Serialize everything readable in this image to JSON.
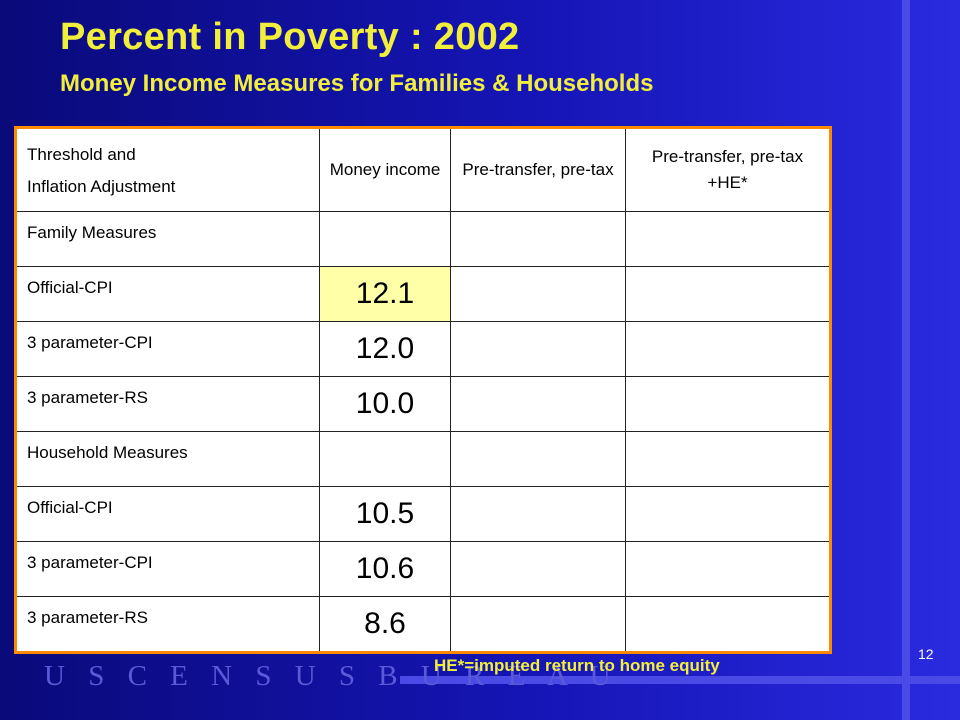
{
  "slide": {
    "title": "Percent in Poverty : 2002",
    "subtitle": "Money Income Measures for Families & Households",
    "footnote": "HE*=imputed return to home equity",
    "logo_text": "U S C E N S U S B U R E A U",
    "page_number": "12",
    "colors": {
      "background": "#1414a8",
      "title": "#f2ef3a",
      "table_border": "#ff8a00",
      "highlight_cell": "#ffffa8"
    }
  },
  "table": {
    "headers": {
      "threshold_line1": "Threshold and",
      "threshold_line2": "Inflation Adjustment",
      "money_income": "Money income",
      "pre_transfer": "Pre-transfer, pre-tax",
      "pre_transfer_he": "Pre-transfer, pre-tax +HE*"
    },
    "rows": [
      {
        "label": "Family Measures",
        "money_income": "",
        "pre_transfer": "",
        "pre_transfer_he": ""
      },
      {
        "label": "Official-CPI",
        "money_income": "12.1",
        "pre_transfer": "",
        "pre_transfer_he": ""
      },
      {
        "label": "3 parameter-CPI",
        "money_income": "12.0",
        "pre_transfer": "",
        "pre_transfer_he": ""
      },
      {
        "label": "3 parameter-RS",
        "money_income": "10.0",
        "pre_transfer": "",
        "pre_transfer_he": ""
      },
      {
        "label": "Household Measures",
        "money_income": "",
        "pre_transfer": "",
        "pre_transfer_he": ""
      },
      {
        "label": "Official-CPI",
        "money_income": "10.5",
        "pre_transfer": "",
        "pre_transfer_he": ""
      },
      {
        "label": "3 parameter-CPI",
        "money_income": "10.6",
        "pre_transfer": "",
        "pre_transfer_he": ""
      },
      {
        "label": "3 parameter-RS",
        "money_income": "8.6",
        "pre_transfer": "",
        "pre_transfer_he": ""
      }
    ]
  }
}
